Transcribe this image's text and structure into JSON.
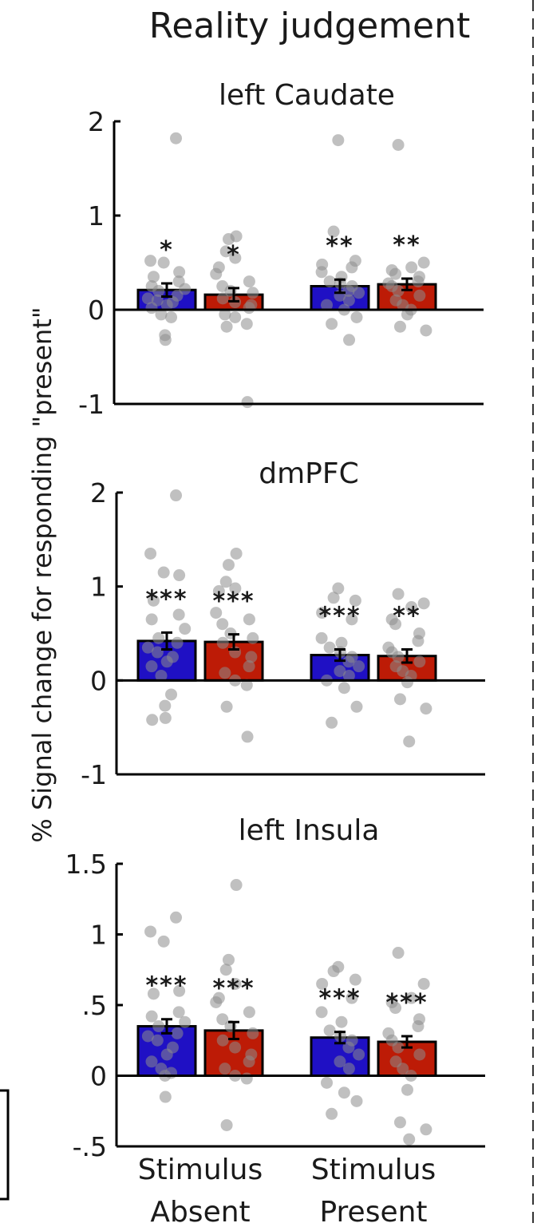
{
  "figure_title": "Reality judgement",
  "ylabel": "% Signal change  for responding \"present\"",
  "colors": {
    "blue": "#1f10c4",
    "red": "#bd1b06",
    "dots": "#8c8c8c",
    "axis": "#000000",
    "divider": "#333333"
  },
  "chart_data": [
    {
      "type": "bar",
      "title": "left Caudate",
      "categories": [
        "Stimulus Absent",
        "Stimulus Present"
      ],
      "series": [
        {
          "color": "#1f10c4",
          "values": [
            0.21,
            0.25
          ],
          "errors": [
            0.07,
            0.07
          ],
          "stars": [
            "*",
            "**"
          ]
        },
        {
          "color": "#bd1b06",
          "values": [
            0.16,
            0.27
          ],
          "errors": [
            0.07,
            0.06
          ],
          "stars": [
            "*",
            "**"
          ]
        }
      ],
      "ylim": [
        -1,
        2
      ],
      "yticks": [
        -1,
        0,
        1,
        2
      ],
      "ytick_labels": [
        "-1",
        "0",
        "1",
        "2"
      ],
      "points": [
        [
          1.82,
          0.52,
          0.5,
          0.4,
          0.35,
          0.3,
          0.25,
          0.22,
          0.2,
          0.15,
          0.12,
          0.1,
          0.08,
          0.05,
          0.02,
          -0.05,
          -0.08,
          -0.27,
          -0.32
        ],
        [
          0.78,
          0.75,
          0.62,
          0.55,
          0.45,
          0.38,
          0.3,
          0.25,
          0.2,
          0.18,
          0.12,
          0.08,
          0.05,
          0.02,
          -0.05,
          -0.08,
          -0.15,
          -0.18,
          -0.98
        ],
        [
          1.8,
          0.83,
          0.52,
          0.48,
          0.45,
          0.4,
          0.35,
          0.3,
          0.28,
          0.25,
          0.2,
          0.18,
          0.15,
          0.1,
          0.05,
          0.0,
          -0.08,
          -0.15,
          -0.32
        ],
        [
          1.75,
          0.5,
          0.45,
          0.42,
          0.38,
          0.35,
          0.3,
          0.28,
          0.25,
          0.2,
          0.15,
          0.1,
          0.05,
          0.0,
          -0.05,
          -0.18,
          -0.22
        ]
      ]
    },
    {
      "type": "bar",
      "title": "dmPFC",
      "categories": [
        "Stimulus Absent",
        "Stimulus Present"
      ],
      "series": [
        {
          "color": "#1f10c4",
          "values": [
            0.42,
            0.27
          ],
          "errors": [
            0.09,
            0.06
          ],
          "stars": [
            "***",
            "***"
          ]
        },
        {
          "color": "#bd1b06",
          "values": [
            0.41,
            0.26
          ],
          "errors": [
            0.08,
            0.07
          ],
          "stars": [
            "***",
            "**"
          ]
        }
      ],
      "ylim": [
        -1,
        2
      ],
      "yticks": [
        -1,
        0,
        1,
        2
      ],
      "ytick_labels": [
        "-1",
        "0",
        "1",
        "2"
      ],
      "points": [
        [
          1.97,
          1.35,
          1.15,
          1.12,
          0.85,
          0.7,
          0.65,
          0.55,
          0.45,
          0.4,
          0.35,
          0.3,
          0.25,
          0.2,
          0.15,
          0.05,
          -0.15,
          -0.27,
          -0.4,
          -0.42
        ],
        [
          1.35,
          1.23,
          1.05,
          0.98,
          0.95,
          0.72,
          0.65,
          0.6,
          0.5,
          0.45,
          0.4,
          0.3,
          0.25,
          0.15,
          0.08,
          0.0,
          -0.05,
          -0.28,
          -0.6
        ],
        [
          0.98,
          0.88,
          0.85,
          0.72,
          0.65,
          0.45,
          0.4,
          0.35,
          0.3,
          0.25,
          0.2,
          0.15,
          0.1,
          0.05,
          0.0,
          -0.08,
          -0.28,
          -0.45
        ],
        [
          0.92,
          0.82,
          0.78,
          0.65,
          0.6,
          0.5,
          0.42,
          0.35,
          0.3,
          0.25,
          0.2,
          0.15,
          0.1,
          0.05,
          -0.02,
          -0.2,
          -0.3,
          -0.65
        ]
      ]
    },
    {
      "type": "bar",
      "title": "left Insula",
      "categories": [
        "Stimulus Absent",
        "Stimulus Present"
      ],
      "series": [
        {
          "color": "#1f10c4",
          "values": [
            0.35,
            0.27
          ],
          "errors": [
            0.05,
            0.04
          ],
          "stars": [
            "***",
            "***"
          ]
        },
        {
          "color": "#bd1b06",
          "values": [
            0.32,
            0.24
          ],
          "errors": [
            0.06,
            0.04
          ],
          "stars": [
            "***",
            "***"
          ]
        }
      ],
      "ylim": [
        -0.5,
        1.5
      ],
      "yticks": [
        -0.5,
        0,
        0.5,
        1,
        1.5
      ],
      "ytick_labels": [
        "-.5",
        "0",
        ".5",
        "1",
        "1.5"
      ],
      "points": [
        [
          1.12,
          1.02,
          0.95,
          0.6,
          0.58,
          0.45,
          0.42,
          0.38,
          0.35,
          0.3,
          0.28,
          0.25,
          0.2,
          0.15,
          0.1,
          0.05,
          0.02,
          0.0,
          -0.15
        ],
        [
          1.35,
          0.82,
          0.75,
          0.65,
          0.55,
          0.52,
          0.45,
          0.4,
          0.35,
          0.3,
          0.25,
          0.2,
          0.15,
          0.1,
          0.05,
          0.0,
          -0.02,
          -0.35
        ],
        [
          0.77,
          0.74,
          0.68,
          0.65,
          0.55,
          0.45,
          0.38,
          0.32,
          0.28,
          0.25,
          0.2,
          0.15,
          0.1,
          0.05,
          -0.05,
          -0.12,
          -0.18,
          -0.27
        ],
        [
          0.87,
          0.65,
          0.55,
          0.52,
          0.48,
          0.4,
          0.35,
          0.3,
          0.25,
          0.2,
          0.15,
          0.1,
          0.05,
          0.0,
          -0.1,
          -0.33,
          -0.38,
          -0.45
        ]
      ]
    }
  ]
}
